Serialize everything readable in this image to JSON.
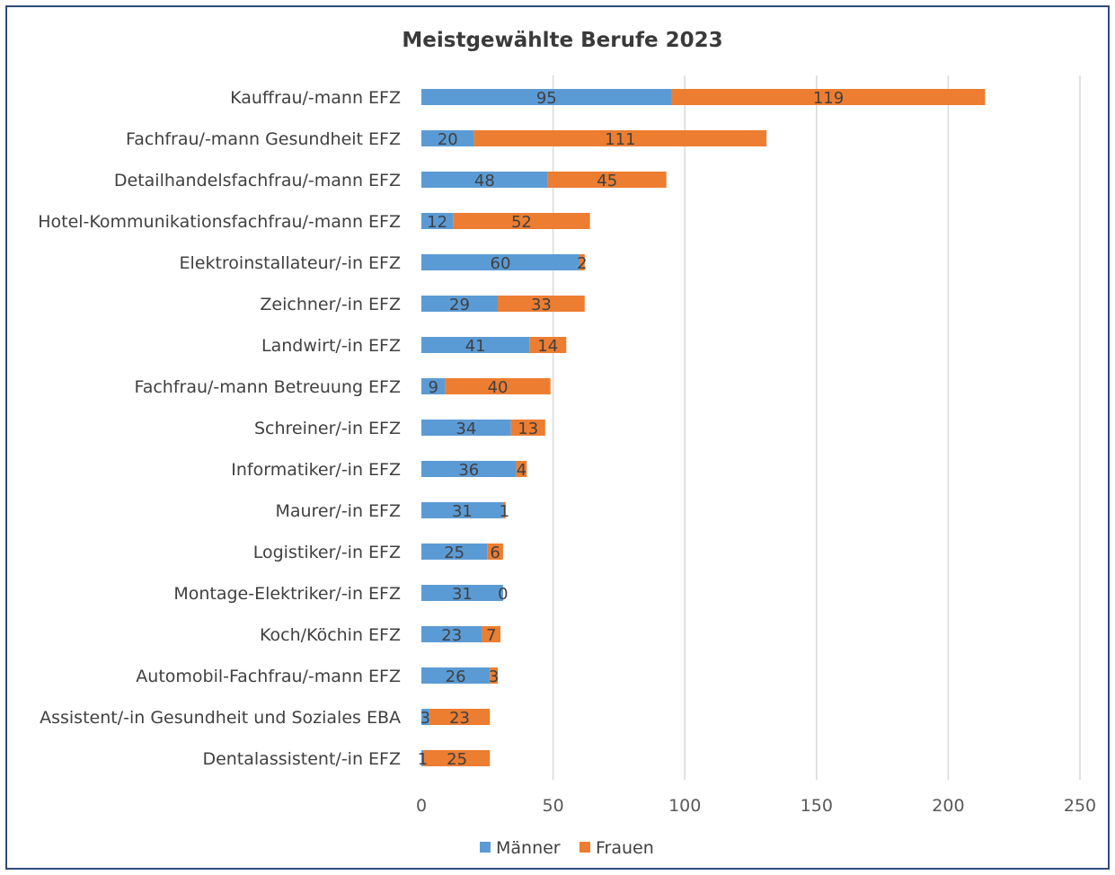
{
  "chart_data": {
    "type": "bar",
    "orientation": "horizontal",
    "stacked": true,
    "title": "Meistgewählte Berufe 2023",
    "categories": [
      "Kauffrau/-mann EFZ",
      "Fachfrau/-mann Gesundheit EFZ",
      "Detailhandelsfachfrau/-mann EFZ",
      "Hotel-Kommunikationsfachfrau/-mann EFZ",
      "Elektroinstallateur/-in EFZ",
      "Zeichner/-in EFZ",
      "Landwirt/-in EFZ",
      "Fachfrau/-mann Betreuung EFZ",
      "Schreiner/-in EFZ",
      "Informatiker/-in EFZ",
      "Maurer/-in EFZ",
      "Logistiker/-in EFZ",
      "Montage-Elektriker/-in EFZ",
      "Koch/Köchin EFZ",
      "Automobil-Fachfrau/-mann EFZ",
      "Assistent/-in Gesundheit und Soziales EBA",
      "Dentalassistent/-in EFZ"
    ],
    "series": [
      {
        "name": "Männer",
        "color": "#5b9bd5",
        "values": [
          95,
          20,
          48,
          12,
          60,
          29,
          41,
          9,
          34,
          36,
          31,
          25,
          31,
          23,
          26,
          3,
          1
        ]
      },
      {
        "name": "Frauen",
        "color": "#ed7d31",
        "values": [
          119,
          111,
          45,
          52,
          2,
          33,
          14,
          40,
          13,
          4,
          1,
          6,
          0,
          7,
          3,
          23,
          25
        ]
      }
    ],
    "xlim": [
      0,
      250
    ],
    "xticks": [
      0,
      50,
      100,
      150,
      200,
      250
    ],
    "grid": true,
    "legend": "bottom"
  }
}
